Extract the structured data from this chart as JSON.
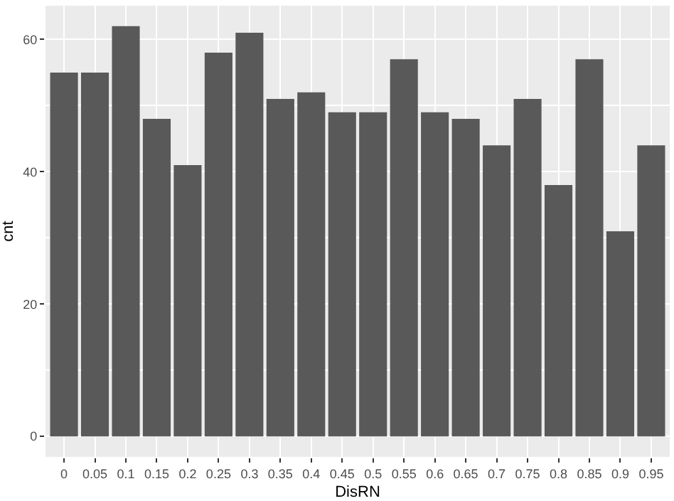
{
  "chart_data": {
    "type": "bar",
    "xlabel": "DisRN",
    "ylabel": "cnt",
    "categories": [
      "0",
      "0.05",
      "0.1",
      "0.15",
      "0.2",
      "0.25",
      "0.3",
      "0.35",
      "0.4",
      "0.45",
      "0.5",
      "0.55",
      "0.6",
      "0.65",
      "0.7",
      "0.75",
      "0.8",
      "0.85",
      "0.9",
      "0.95"
    ],
    "values": [
      55,
      55,
      62,
      48,
      41,
      58,
      61,
      51,
      52,
      49,
      49,
      57,
      49,
      48,
      44,
      51,
      38,
      57,
      31,
      44
    ],
    "color": "#595959",
    "ylim": [
      -3.1,
      65.1
    ],
    "yticks": [
      0,
      20,
      40,
      60
    ],
    "grid": true
  }
}
